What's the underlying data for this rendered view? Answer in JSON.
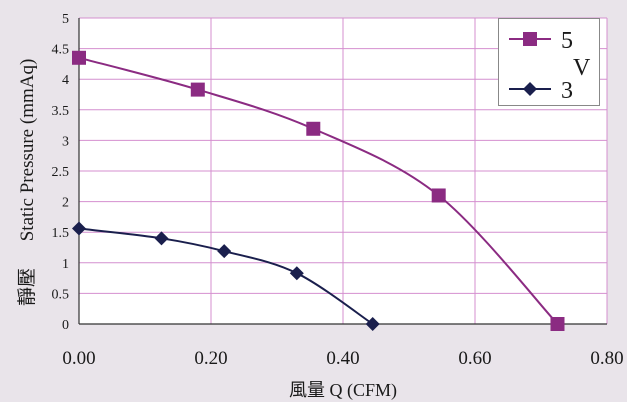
{
  "chart_data": {
    "type": "line",
    "xlabel": "風量 Q (CFM)",
    "ylabel": "Static Pressure (mmAq)",
    "ylabel_cjk": "靜壓",
    "xlim": [
      0,
      0.8
    ],
    "ylim": [
      0,
      5
    ],
    "x_ticks": [
      "0.00",
      "0.20",
      "0.40",
      "0.60",
      "0.80"
    ],
    "y_ticks": [
      "0",
      "0.5",
      "1",
      "1.5",
      "2",
      "2.5",
      "3",
      "3.5",
      "4",
      "4.5",
      "5"
    ],
    "grid": true,
    "legend_position": "top-right",
    "legend_unit": "V",
    "series": [
      {
        "name": "5",
        "color": "#8b2b82",
        "marker": "square",
        "x": [
          0.0,
          0.18,
          0.355,
          0.545,
          0.725
        ],
        "y": [
          4.35,
          3.83,
          3.19,
          2.1,
          0.0
        ]
      },
      {
        "name": "3",
        "color": "#1a1f4d",
        "marker": "diamond",
        "x": [
          0.0,
          0.125,
          0.22,
          0.33,
          0.445
        ],
        "y": [
          1.56,
          1.4,
          1.19,
          0.83,
          0.0
        ]
      }
    ]
  }
}
